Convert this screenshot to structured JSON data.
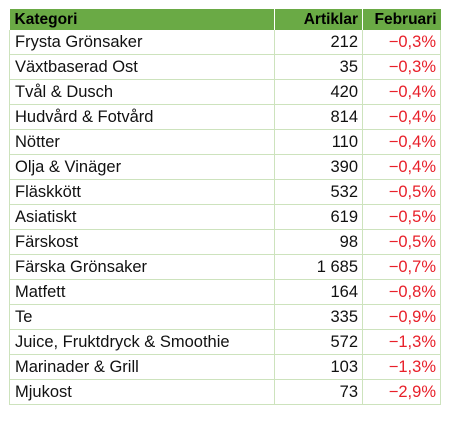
{
  "table": {
    "headers": {
      "category": "Kategori",
      "articles": "Artiklar",
      "february": "Februari"
    },
    "rows": [
      {
        "category": "Frysta Grönsaker",
        "articles": "212",
        "february": "−0,3%"
      },
      {
        "category": "Växtbaserad Ost",
        "articles": "35",
        "february": "−0,3%"
      },
      {
        "category": "Tvål & Dusch",
        "articles": "420",
        "february": "−0,4%"
      },
      {
        "category": "Hudvård & Fotvård",
        "articles": "814",
        "february": "−0,4%"
      },
      {
        "category": "Nötter",
        "articles": "110",
        "february": "−0,4%"
      },
      {
        "category": "Olja & Vinäger",
        "articles": "390",
        "february": "−0,4%"
      },
      {
        "category": "Fläskkött",
        "articles": "532",
        "february": "−0,5%"
      },
      {
        "category": "Asiatiskt",
        "articles": "619",
        "february": "−0,5%"
      },
      {
        "category": "Färskost",
        "articles": "98",
        "february": "−0,5%"
      },
      {
        "category": "Färska Grönsaker",
        "articles": "1 685",
        "february": "−0,7%"
      },
      {
        "category": "Matfett",
        "articles": "164",
        "february": "−0,8%"
      },
      {
        "category": "Te",
        "articles": "335",
        "february": "−0,9%"
      },
      {
        "category": "Juice, Fruktdryck & Smoothie",
        "articles": "572",
        "february": "−1,3%"
      },
      {
        "category": "Marinader & Grill",
        "articles": "103",
        "february": "−1,3%"
      },
      {
        "category": "Mjukost",
        "articles": "73",
        "february": "−2,9%"
      }
    ]
  },
  "colors": {
    "header_bg": "#6aaa45",
    "grid": "#cde3bd",
    "negative": "#e8202a"
  }
}
